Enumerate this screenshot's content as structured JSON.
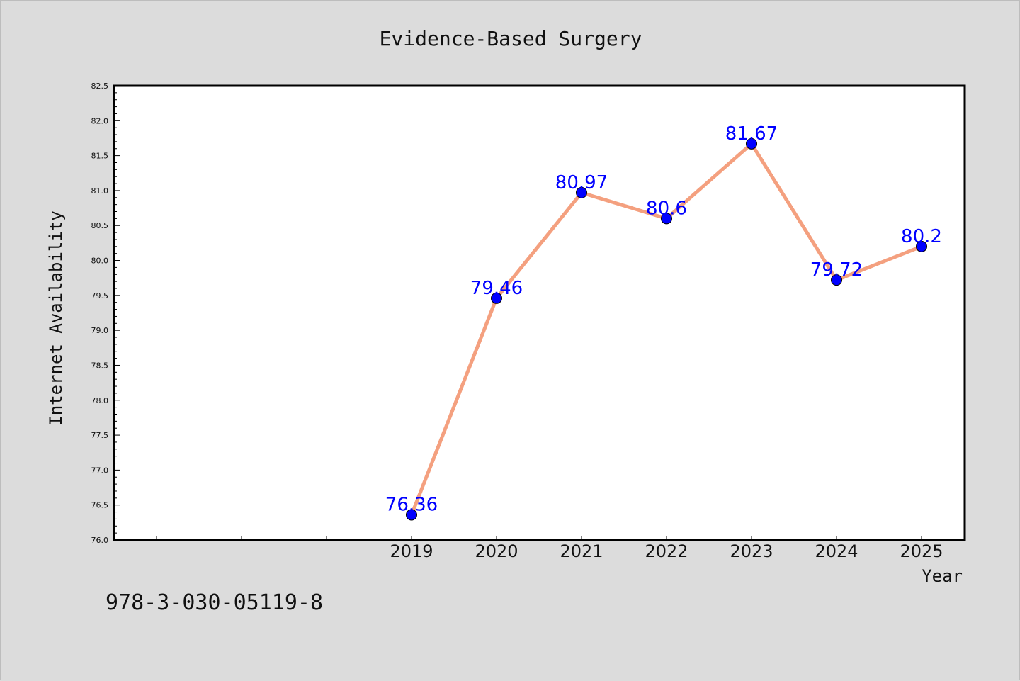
{
  "chart_data": {
    "type": "line",
    "title": "Evidence-Based Surgery",
    "xlabel": "Year",
    "ylabel": "Internet Availability",
    "x": [
      "2019",
      "2020",
      "2021",
      "2022",
      "2023",
      "2024",
      "2025"
    ],
    "series": [
      {
        "values": [
          76.36,
          79.46,
          80.97,
          80.6,
          81.67,
          79.72,
          80.2
        ],
        "data_labels": [
          "76.36",
          "79.46",
          "80.97",
          "80.6",
          "81.67",
          "79.72",
          "80.2"
        ],
        "line_color": "#f4a07f",
        "marker_color": "#0000ff"
      }
    ],
    "ylim": [
      76.0,
      82.5
    ],
    "yticks": [
      "76.0",
      "76.5",
      "77.0",
      "77.5",
      "78.0",
      "78.5",
      "79.0",
      "79.5",
      "80.0",
      "80.5",
      "81.0",
      "81.5",
      "82.0",
      "82.5"
    ],
    "x_unlabeled_leading_ticks": 3,
    "grid": false,
    "legend": "none"
  },
  "footer": {
    "isbn": "978-3-030-05119-8"
  },
  "colors": {
    "background": "#dcdcdc",
    "plot_area": "#ffffff",
    "data_label": "#0000ff"
  }
}
